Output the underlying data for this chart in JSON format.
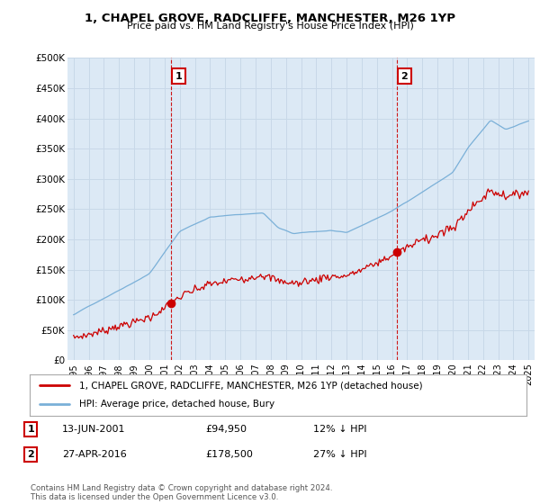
{
  "title": "1, CHAPEL GROVE, RADCLIFFE, MANCHESTER, M26 1YP",
  "subtitle": "Price paid vs. HM Land Registry's House Price Index (HPI)",
  "ylim": [
    0,
    500000
  ],
  "yticks": [
    0,
    50000,
    100000,
    150000,
    200000,
    250000,
    300000,
    350000,
    400000,
    450000,
    500000
  ],
  "ytick_labels": [
    "£0",
    "£50K",
    "£100K",
    "£150K",
    "£200K",
    "£250K",
    "£300K",
    "£350K",
    "£400K",
    "£450K",
    "£500K"
  ],
  "hpi_color": "#7ab0d8",
  "price_color": "#cc0000",
  "marker1_x": 2001.44,
  "marker1_y": 94950,
  "marker2_x": 2016.32,
  "marker2_y": 178500,
  "chart_bg_color": "#dce9f5",
  "legend_price_label": "1, CHAPEL GROVE, RADCLIFFE, MANCHESTER, M26 1YP (detached house)",
  "legend_hpi_label": "HPI: Average price, detached house, Bury",
  "footnote": "Contains HM Land Registry data © Crown copyright and database right 2024.\nThis data is licensed under the Open Government Licence v3.0.",
  "background_color": "#ffffff",
  "grid_color": "#c8d8e8",
  "xlim_min": 1994.6,
  "xlim_max": 2025.4
}
